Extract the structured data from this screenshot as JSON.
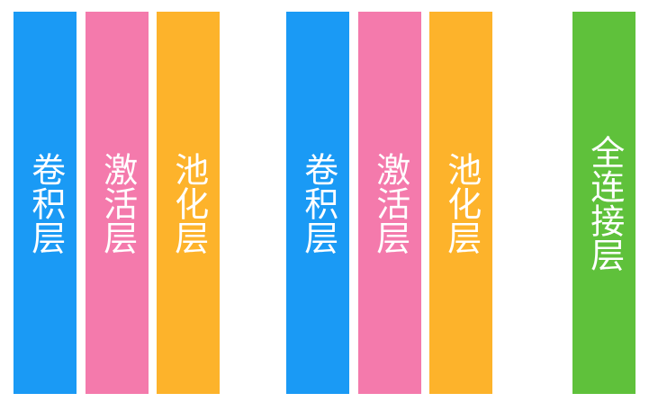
{
  "layers": [
    {
      "label": "卷积层",
      "color": "#1a9af5"
    },
    {
      "label": "激活层",
      "color": "#f47aac"
    },
    {
      "label": "池化层",
      "color": "#fdb32b"
    },
    {
      "label": "卷积层",
      "color": "#1a9af5"
    },
    {
      "label": "激活层",
      "color": "#f47aac"
    },
    {
      "label": "池化层",
      "color": "#fdb32b"
    },
    {
      "label": "全连接层",
      "color": "#5fc13b"
    }
  ]
}
